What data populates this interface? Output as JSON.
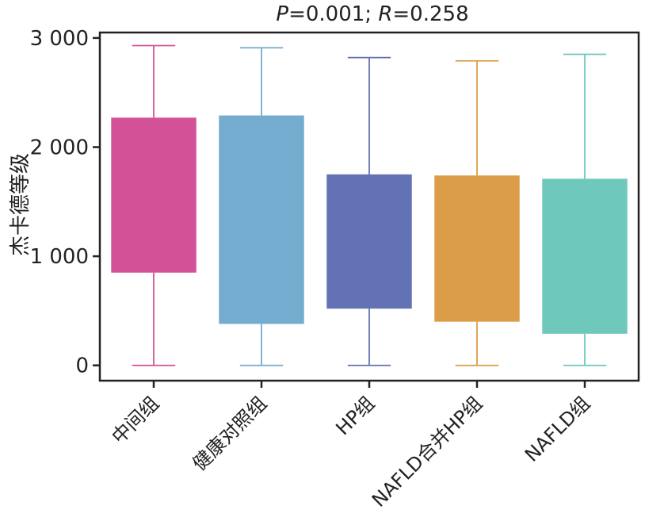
{
  "chart_data": {
    "type": "box",
    "title_parts": [
      {
        "text": "P",
        "italic": true
      },
      {
        "text": "=0.001; ",
        "italic": false
      },
      {
        "text": "R",
        "italic": true
      },
      {
        "text": "=0.258",
        "italic": false
      }
    ],
    "ylabel": "杰卡德等级",
    "xlabel": "",
    "ylim": [
      -140,
      3050
    ],
    "yticks": [
      0,
      1000,
      2000,
      3000
    ],
    "ytick_labels": [
      "0",
      "1 000",
      "2 000",
      "3 000"
    ],
    "grid": false,
    "categories": [
      "中间组",
      "健康对照组",
      "HP组",
      "NAFLD合并HP组",
      "NAFLD组"
    ],
    "boxes": [
      {
        "category": "中间组",
        "whisker_low": 0,
        "q1": 850,
        "q3": 2270,
        "whisker_high": 2930,
        "color": "#D35297"
      },
      {
        "category": "健康对照组",
        "whisker_low": 0,
        "q1": 380,
        "q3": 2290,
        "whisker_high": 2910,
        "color": "#73ACCE"
      },
      {
        "category": "HP组",
        "whisker_low": 0,
        "q1": 520,
        "q3": 1750,
        "whisker_high": 2820,
        "color": "#6272B4"
      },
      {
        "category": "NAFLD合并HP组",
        "whisker_low": 0,
        "q1": 400,
        "q3": 1740,
        "whisker_high": 2790,
        "color": "#DB9D47"
      },
      {
        "category": "NAFLD组",
        "whisker_low": 0,
        "q1": 290,
        "q3": 1710,
        "whisker_high": 2850,
        "color": "#6EC9BC"
      }
    ]
  }
}
